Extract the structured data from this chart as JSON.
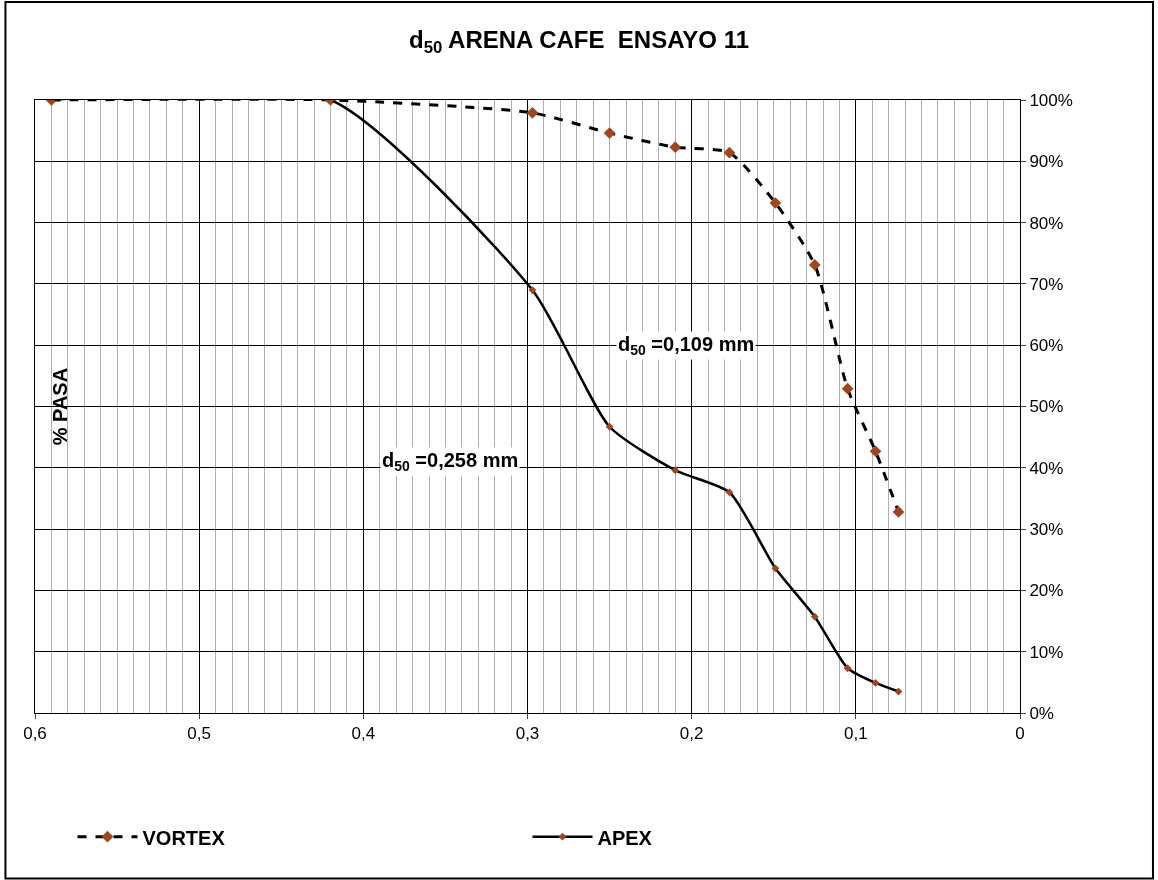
{
  "chart_data": {
    "type": "line",
    "title": "d$_{50}$ ARENA CAFE  ENSAYO 11",
    "ylabel": "% PASA",
    "annotations": [
      "d$_{50}$ =0,109 mm",
      "d$_{50}$ =0,258 mm"
    ],
    "x": [
      0.59,
      0.42,
      0.297,
      0.25,
      0.21,
      0.177,
      0.149,
      0.125,
      0.105,
      0.088,
      0.074
    ],
    "series": [
      {
        "name": "VORTEX",
        "color": "#a0461e",
        "line_style": "dashed",
        "marker": "diamond",
        "values": [
          100,
          100,
          97.9,
          94.6,
          92.3,
          91.4,
          83.2,
          73.1,
          52.9,
          42.7,
          32.8
        ]
      },
      {
        "name": "APEX",
        "color": "#a0461e",
        "line_style": "solid",
        "marker": "diamond",
        "values": [
          100,
          100,
          69.0,
          46.7,
          39.6,
          36.0,
          23.6,
          15.7,
          7.3,
          4.9,
          3.5
        ]
      }
    ],
    "xlim": [
      0.6,
      0
    ],
    "ylim": [
      0,
      100
    ],
    "xticks": [
      {
        "value": 0.6,
        "label": "0,6"
      },
      {
        "value": 0.5,
        "label": "0,5"
      },
      {
        "value": 0.4,
        "label": "0,4"
      },
      {
        "value": 0.3,
        "label": "0,3"
      },
      {
        "value": 0.2,
        "label": "0,2"
      },
      {
        "value": 0.1,
        "label": "0,1"
      },
      0
    ],
    "yticks": [
      {
        "value": 0,
        "label": "0%"
      },
      {
        "value": 10,
        "label": "10%"
      },
      {
        "value": 20,
        "label": "20%"
      },
      {
        "value": 30,
        "label": "30%"
      },
      {
        "value": 40,
        "label": "40%"
      },
      {
        "value": 50,
        "label": "50%"
      },
      {
        "value": 60,
        "label": "60%"
      },
      {
        "value": 70,
        "label": "70%"
      },
      {
        "value": 80,
        "label": "80%"
      },
      {
        "value": 90,
        "label": "90%"
      },
      {
        "value": 100,
        "label": "100%"
      }
    ],
    "grid": true,
    "legend": "bottom"
  }
}
